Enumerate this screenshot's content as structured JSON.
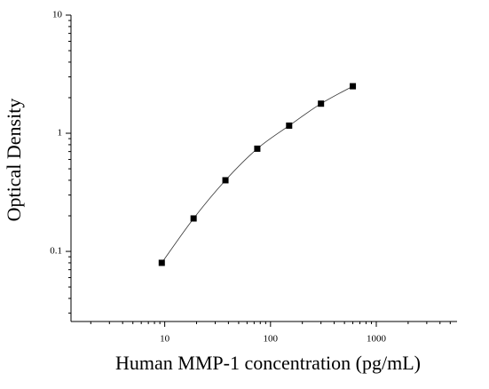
{
  "chart_data": {
    "type": "scatter",
    "x_label": "Human MMP-1 concentration (pg/mL)",
    "y_label": "Optical Density",
    "x": [
      9.375,
      18.75,
      37.5,
      75,
      150,
      300,
      600
    ],
    "values": [
      0.08,
      0.19,
      0.4,
      0.74,
      1.16,
      1.78,
      2.5
    ],
    "color": "#000000",
    "log_x": true,
    "log_y": true,
    "xlim": [
      1.3,
      5800
    ],
    "ylim": [
      0.0255,
      10
    ],
    "xticks": [
      10,
      100,
      1000
    ],
    "yticks": [
      0.1,
      1,
      10
    ],
    "fit_curve": true
  }
}
